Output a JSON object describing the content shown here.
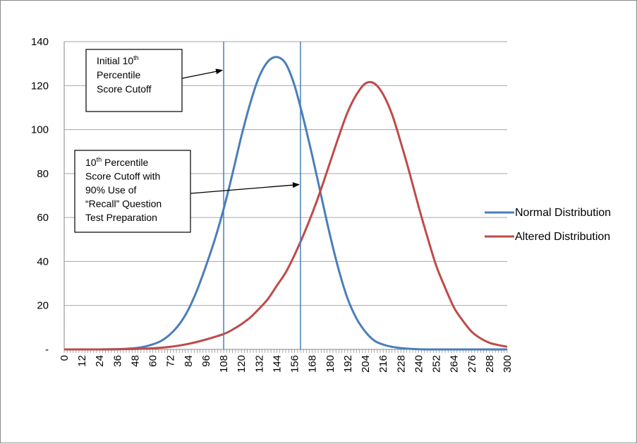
{
  "chart_data": {
    "type": "line",
    "title": "",
    "xlabel": "",
    "ylabel": "",
    "xlim": [
      0,
      300
    ],
    "ylim": [
      0,
      140
    ],
    "x_ticks": [
      "0",
      "12",
      "24",
      "36",
      "48",
      "60",
      "72",
      "84",
      "96",
      "108",
      "120",
      "132",
      "144",
      "156",
      "168",
      "180",
      "192",
      "204",
      "216",
      "228",
      "240",
      "252",
      "264",
      "276",
      "288",
      "300"
    ],
    "y_ticks": [
      "-",
      "20",
      "40",
      "60",
      "80",
      "100",
      "120",
      "140"
    ],
    "grid": "horizontal",
    "legend_position": "right",
    "series": [
      {
        "name": "Normal Distribution",
        "color": "#4a7ebb",
        "x": [
          0,
          12,
          24,
          36,
          42,
          48,
          54,
          60,
          66,
          72,
          78,
          84,
          90,
          96,
          102,
          108,
          114,
          120,
          126,
          132,
          138,
          144,
          150,
          156,
          162,
          168,
          174,
          180,
          186,
          192,
          198,
          204,
          210,
          216,
          222,
          228,
          234,
          240,
          246,
          252,
          258,
          264,
          270,
          276,
          288,
          300
        ],
        "y": [
          0,
          0,
          0,
          0.1,
          0.3,
          0.6,
          1.2,
          2.3,
          4,
          7,
          11.5,
          18,
          27,
          38,
          50,
          64,
          80,
          97,
          112,
          124,
          131,
          133,
          130,
          120,
          105,
          88,
          70,
          52,
          36,
          23,
          14,
          8,
          4,
          2.2,
          1.2,
          0.6,
          0.3,
          0.1,
          0,
          0,
          0,
          0,
          0,
          0,
          0,
          0
        ]
      },
      {
        "name": "Altered Distribution",
        "color": "#be4b48",
        "x": [
          0,
          12,
          24,
          36,
          48,
          60,
          72,
          84,
          96,
          108,
          114,
          120,
          126,
          132,
          138,
          144,
          150,
          156,
          162,
          168,
          174,
          180,
          186,
          192,
          198,
          204,
          210,
          216,
          222,
          228,
          234,
          240,
          246,
          252,
          258,
          264,
          270,
          276,
          282,
          288,
          294,
          300
        ],
        "y": [
          0,
          0,
          0,
          0.1,
          0.2,
          0.5,
          1.2,
          2.5,
          4.5,
          7,
          9,
          11.5,
          14.5,
          18.5,
          23,
          29,
          35,
          43,
          52,
          62,
          73,
          85,
          97,
          108,
          116,
          121,
          121,
          116,
          107,
          94,
          80,
          65,
          51,
          38,
          28,
          19,
          13,
          8,
          5,
          3,
          2,
          1.2
        ]
      }
    ],
    "vertical_lines": [
      {
        "x": 108,
        "color": "#4a7ebb"
      },
      {
        "x": 160,
        "color": "#4a7ebb"
      }
    ],
    "annotations": [
      {
        "lines": [
          {
            "pre": "Initial 10",
            "sup": "th",
            "post": ""
          },
          {
            "pre": "Percentile",
            "sup": "",
            "post": ""
          },
          {
            "pre": "Score Cutoff",
            "sup": "",
            "post": ""
          }
        ],
        "arrow_to_x": 108,
        "arrow_to_y": 127
      },
      {
        "lines": [
          {
            "pre": "10",
            "sup": "th",
            "post": " Percentile"
          },
          {
            "pre": "Score Cutoff with",
            "sup": "",
            "post": ""
          },
          {
            "pre": "90% Use of",
            "sup": "",
            "post": ""
          },
          {
            "pre": "“Recall” Question",
            "sup": "",
            "post": ""
          },
          {
            "pre": "Test Preparation",
            "sup": "",
            "post": ""
          }
        ],
        "arrow_to_x": 160,
        "arrow_to_y": 75
      }
    ]
  }
}
